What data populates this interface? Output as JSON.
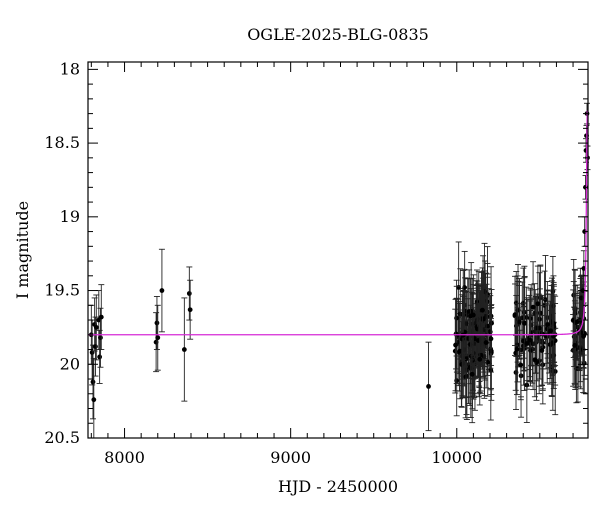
{
  "chart_data": {
    "type": "scatter",
    "title": "OGLE-2025-BLG-0835",
    "xlabel": "HJD - 2450000",
    "ylabel": "I magnitude",
    "xlim": [
      7780,
      10790
    ],
    "ylim": [
      20.5,
      17.95
    ],
    "y_inverted": true,
    "grid": false,
    "x_ticks": [
      8000,
      9000,
      10000
    ],
    "x_tick_labels": [
      "8000",
      "9000",
      "10000"
    ],
    "y_ticks": [
      18,
      18.5,
      19,
      19.5,
      20,
      20.5
    ],
    "y_tick_labels": [
      "18",
      "18.5",
      "19",
      "19.5",
      "20",
      "20.5"
    ],
    "model_color": "#d62bd6",
    "point_color": "#000000",
    "points": [
      {
        "x": 7800,
        "y": 19.8,
        "err": 0.2
      },
      {
        "x": 7805,
        "y": 19.92,
        "err": 0.22
      },
      {
        "x": 7810,
        "y": 20.12,
        "err": 0.25
      },
      {
        "x": 7815,
        "y": 20.24,
        "err": 0.28
      },
      {
        "x": 7820,
        "y": 19.73,
        "err": 0.18
      },
      {
        "x": 7825,
        "y": 19.88,
        "err": 0.2
      },
      {
        "x": 7830,
        "y": 19.75,
        "err": 0.22
      },
      {
        "x": 7845,
        "y": 19.7,
        "err": 0.2
      },
      {
        "x": 7850,
        "y": 19.95,
        "err": 0.18
      },
      {
        "x": 7855,
        "y": 19.82,
        "err": 0.2
      },
      {
        "x": 7860,
        "y": 19.68,
        "err": 0.22
      },
      {
        "x": 8190,
        "y": 19.85,
        "err": 0.2
      },
      {
        "x": 8195,
        "y": 19.72,
        "err": 0.18
      },
      {
        "x": 8200,
        "y": 19.82,
        "err": 0.22
      },
      {
        "x": 8225,
        "y": 19.5,
        "err": 0.28
      },
      {
        "x": 8360,
        "y": 19.9,
        "err": 0.35
      },
      {
        "x": 8390,
        "y": 19.52,
        "err": 0.18
      },
      {
        "x": 8395,
        "y": 19.63,
        "err": 0.2
      },
      {
        "x": 9830,
        "y": 20.15,
        "err": 0.3
      },
      {
        "x": 10740,
        "y": 19.7,
        "err": 0.15
      },
      {
        "x": 10750,
        "y": 19.55,
        "err": 0.15
      },
      {
        "x": 10760,
        "y": 19.5,
        "err": 0.15
      },
      {
        "x": 10765,
        "y": 19.35,
        "err": 0.12
      },
      {
        "x": 10770,
        "y": 19.1,
        "err": 0.1
      },
      {
        "x": 10775,
        "y": 18.8,
        "err": 0.08
      },
      {
        "x": 10778,
        "y": 18.55,
        "err": 0.08
      },
      {
        "x": 10781,
        "y": 18.45,
        "err": 0.07
      },
      {
        "x": 10784,
        "y": 18.3,
        "err": 0.07
      },
      {
        "x": 10787,
        "y": 18.6,
        "err": 0.08
      }
    ],
    "clusters": [
      {
        "x_min": 9990,
        "x_max": 10210,
        "n": 130,
        "y_center": 19.8,
        "y_spread": 0.22,
        "err": 0.26
      },
      {
        "x_min": 10350,
        "x_max": 10600,
        "n": 95,
        "y_center": 19.8,
        "y_spread": 0.2,
        "err": 0.25
      },
      {
        "x_min": 10700,
        "x_max": 10770,
        "n": 35,
        "y_center": 19.82,
        "y_spread": 0.18,
        "err": 0.24
      }
    ],
    "model": {
      "baseline": 19.8,
      "t0": 10786,
      "peak": 18.28,
      "tE": 12
    }
  }
}
